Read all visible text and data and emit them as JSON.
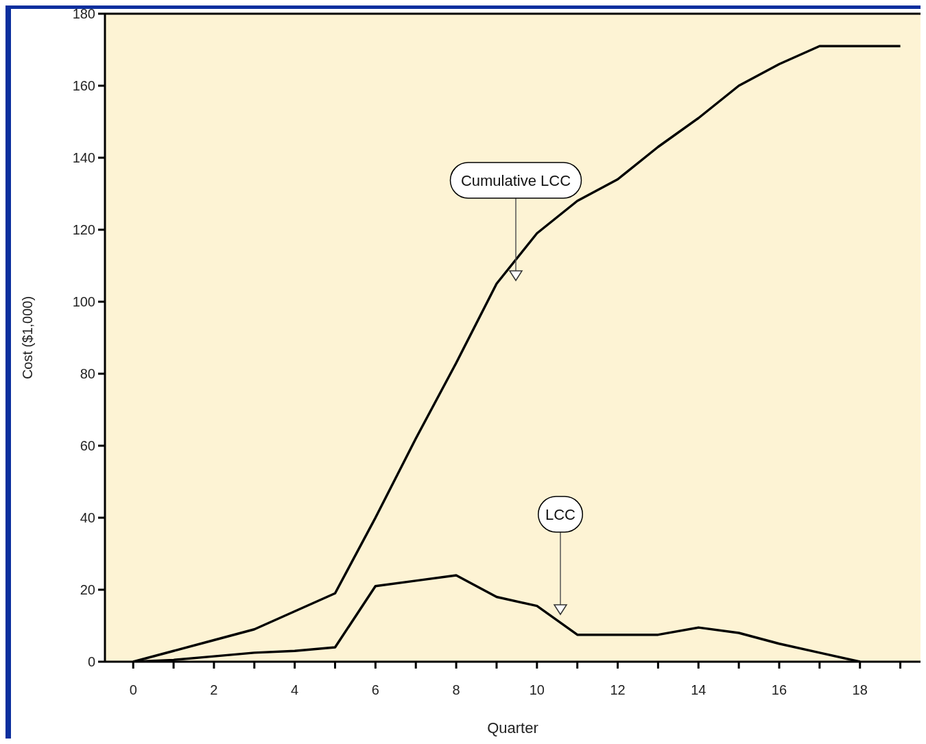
{
  "chart_data": {
    "type": "line",
    "xlabel": "Quarter",
    "ylabel": "Cost ($1,000)",
    "x": [
      0,
      1,
      2,
      3,
      4,
      5,
      6,
      7,
      8,
      9,
      10,
      11,
      12,
      13,
      14,
      15,
      16,
      17,
      18,
      19
    ],
    "series": [
      {
        "color": "#000000",
        "values": [
          0,
          3,
          6,
          9,
          14,
          19,
          40,
          62,
          83,
          105,
          119,
          128,
          134,
          143,
          151,
          160,
          166,
          171,
          171,
          171
        ]
      },
      {
        "color": "#000000",
        "x": [
          0,
          1,
          2,
          3,
          4,
          5,
          6,
          7,
          8,
          9,
          10,
          11,
          12,
          13,
          14,
          15,
          16,
          17,
          18
        ],
        "values": [
          0,
          0.5,
          1.5,
          2.5,
          3,
          4,
          21,
          22.5,
          24,
          18,
          15.5,
          7.5,
          7.5,
          7.5,
          9.5,
          8,
          5,
          2.5,
          0
        ]
      }
    ],
    "xlim": [
      -0.7,
      19.5
    ],
    "xticks": [
      0,
      {
        "value": 1,
        "label": null
      },
      2,
      {
        "value": 3,
        "label": null
      },
      4,
      {
        "value": 5,
        "label": null
      },
      6,
      {
        "value": 7,
        "label": null
      },
      8,
      {
        "value": 9,
        "label": null
      },
      10,
      {
        "value": 11,
        "label": null
      },
      12,
      {
        "value": 13,
        "label": null
      },
      14,
      {
        "value": 15,
        "label": null
      },
      16,
      {
        "value": 17,
        "label": null
      },
      18,
      {
        "value": 19,
        "label": null
      }
    ],
    "ylim": [
      0,
      180
    ],
    "yticks": [
      0,
      20,
      40,
      60,
      80,
      100,
      120,
      140,
      160,
      180
    ],
    "marker": "none",
    "line_style": "solid",
    "legend": false,
    "grid": false,
    "annotations": [
      "Cumulative LCC",
      "LCC"
    ]
  }
}
